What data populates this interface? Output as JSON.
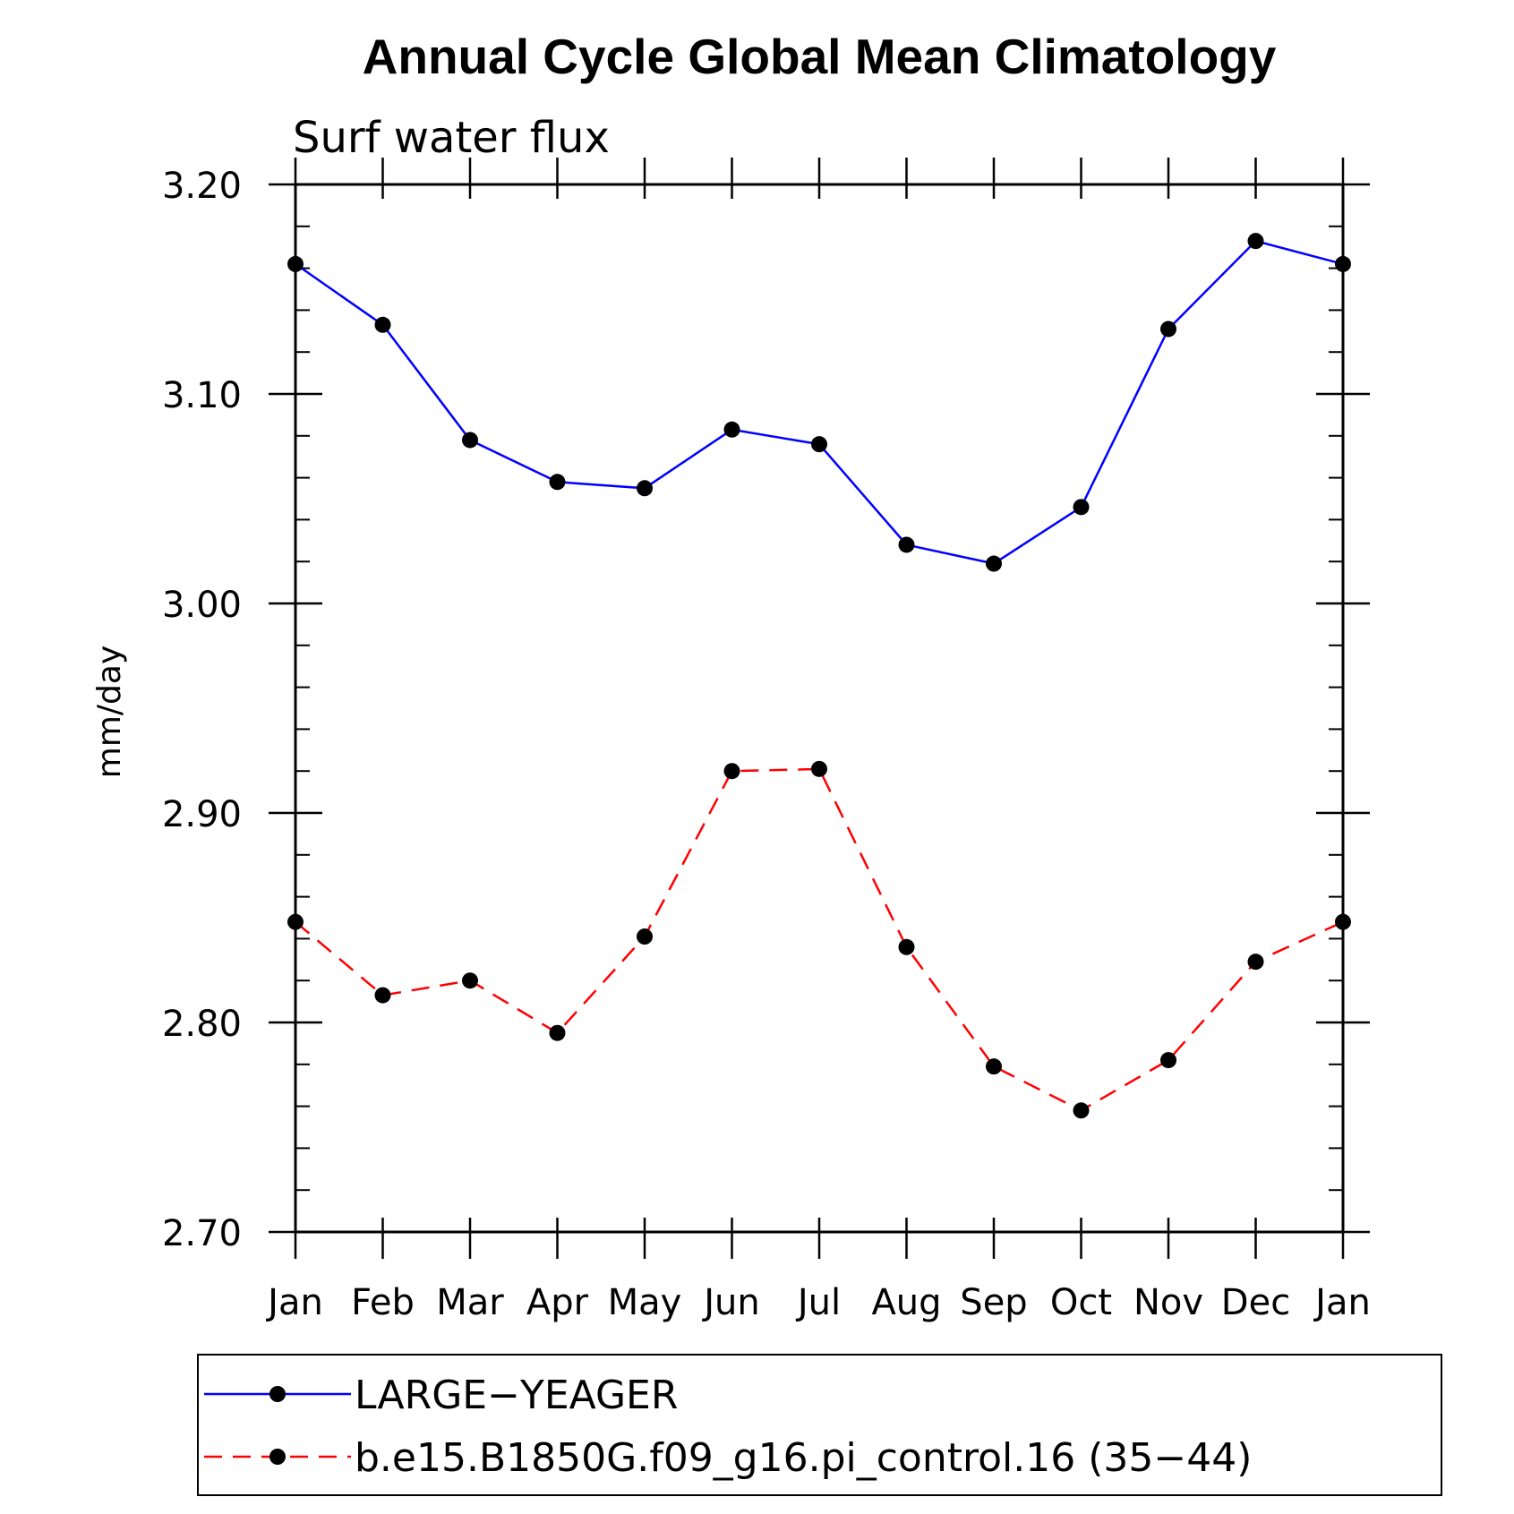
{
  "chart_data": {
    "type": "line",
    "title": "Annual Cycle Global Mean Climatology",
    "subtitle": "Surf water flux",
    "xlabel": "",
    "ylabel": "mm/day",
    "categories": [
      "Jan",
      "Feb",
      "Mar",
      "Apr",
      "May",
      "Jun",
      "Jul",
      "Aug",
      "Sep",
      "Oct",
      "Nov",
      "Dec",
      "Jan"
    ],
    "ylim": [
      2.7,
      3.2
    ],
    "yticks": [
      "3.20",
      "3.10",
      "3.00",
      "2.90",
      "2.80",
      "2.70"
    ],
    "ytick_values": [
      3.2,
      3.1,
      3.0,
      2.9,
      2.8,
      2.7
    ],
    "series": [
      {
        "name": "LARGE−YEAGER",
        "color": "#0000ff",
        "style": "solid",
        "values": [
          3.162,
          3.133,
          3.078,
          3.058,
          3.055,
          3.083,
          3.076,
          3.028,
          3.019,
          3.046,
          3.131,
          3.173,
          3.162
        ]
      },
      {
        "name": "b.e15.B1850G.f09_g16.pi_control.16 (35−44)",
        "color": "#ff0000",
        "style": "dashed",
        "values": [
          2.848,
          2.813,
          2.82,
          2.795,
          2.841,
          2.92,
          2.921,
          2.836,
          2.779,
          2.758,
          2.782,
          2.829,
          2.848
        ]
      }
    ],
    "marker_color": "#000000",
    "legend_position": "bottom"
  }
}
